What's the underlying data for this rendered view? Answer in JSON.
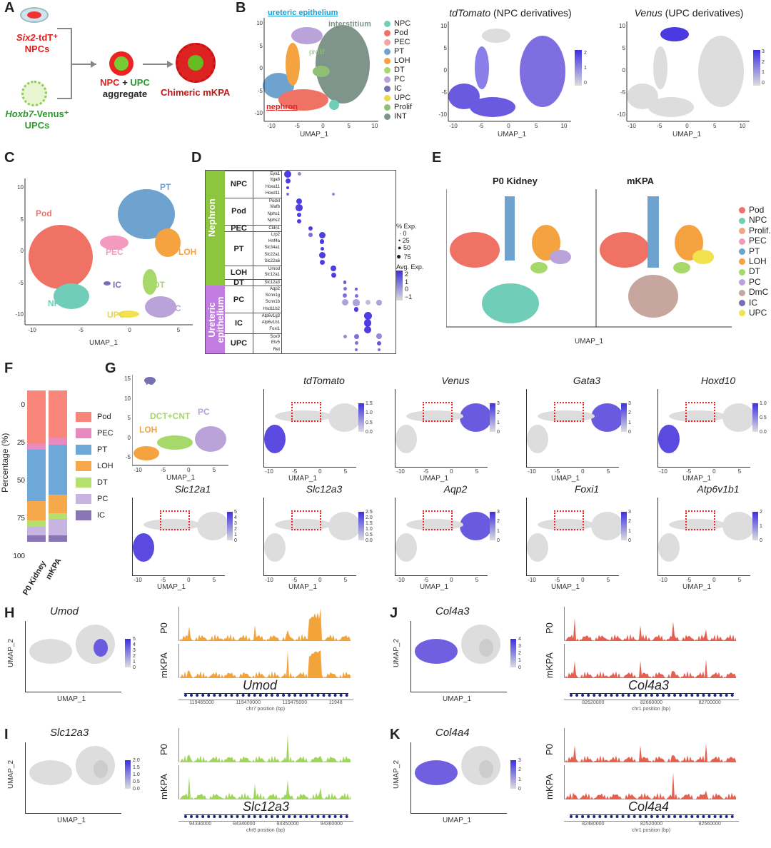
{
  "panels": {
    "A": "A",
    "B": "B",
    "C": "C",
    "D": "D",
    "E": "E",
    "F": "F",
    "G": "G",
    "H": "H",
    "I": "I",
    "J": "J",
    "K": "K"
  },
  "A": {
    "npc_gene": "Six2",
    "npc_suffix": "-tdT⁺",
    "npc_label": "NPCs",
    "upc_gene": "Hoxb7",
    "upc_suffix": "-Venus⁺",
    "upc_label": "UPCs",
    "agg_npc": "NPC",
    "agg_plus": " + ",
    "agg_upc": "UPC",
    "agg_word": "aggregate",
    "chimeric": "Chimeric mKPA"
  },
  "axes": {
    "x": "UMAP_1",
    "y": "UMAP_2"
  },
  "B": {
    "ureteric": "ureteric epithelium",
    "interstitium": "interstitium",
    "prolif": "prolif.",
    "nephron": "nephron",
    "legend": [
      {
        "l": "NPC",
        "c": "#6fcdb8"
      },
      {
        "l": "Pod",
        "c": "#f07265"
      },
      {
        "l": "PEC",
        "c": "#f2a3a3"
      },
      {
        "l": "PT",
        "c": "#6ea3d0"
      },
      {
        "l": "LOH",
        "c": "#f4a340"
      },
      {
        "l": "DT",
        "c": "#a6d96a"
      },
      {
        "l": "PC",
        "c": "#b9a3d8"
      },
      {
        "l": "IC",
        "c": "#7570b3"
      },
      {
        "l": "UPC",
        "c": "#e7d84e"
      },
      {
        "l": "Prolif",
        "c": "#8fbf73"
      },
      {
        "l": "INT",
        "c": "#7f958b"
      }
    ],
    "td_title_gene": "tdTomato",
    "td_title_rest": " (NPC derivatives)",
    "td_scale": [
      "2",
      "1",
      "0"
    ],
    "venus_title_gene": "Venus",
    "venus_title_rest": " (UPC derivatives)",
    "venus_scale": [
      "3",
      "2",
      "1",
      "0"
    ],
    "xticks": [
      "-10",
      "-5",
      "0",
      "5",
      "10"
    ],
    "yticks": [
      "10",
      "5",
      "0",
      "-5",
      "-10"
    ]
  },
  "C": {
    "labels": [
      "PT",
      "Pod",
      "PEC",
      "LOH",
      "IC",
      "DT",
      "NPC",
      "UPC",
      "PC"
    ],
    "xticks": [
      "-10",
      "-5",
      "0",
      "5"
    ],
    "yticks": [
      "10",
      "5",
      "0",
      "-5",
      "-10"
    ]
  },
  "D": {
    "groups": [
      {
        "l": "Nephron",
        "c": "#8cc63f"
      },
      {
        "l": "Ureteric epithelium",
        "c": "#c27be0"
      }
    ],
    "clusters": [
      {
        "l": "NPC",
        "genes": [
          "Eya1",
          "Itga8",
          "Hoxa11",
          "Hoxd11"
        ]
      },
      {
        "l": "Pod",
        "genes": [
          "Podxl",
          "Mafb",
          "Nphs1",
          "Nphs2"
        ]
      },
      {
        "l": "PEC",
        "genes": [
          "Cldn1"
        ]
      },
      {
        "l": "PT",
        "genes": [
          "Lrp2",
          "Hnf4a",
          "Slc34a1",
          "Slc22a1",
          "Slc22a6"
        ]
      },
      {
        "l": "LOH",
        "genes": [
          "Umod",
          "Slc12a1"
        ]
      },
      {
        "l": "DT",
        "genes": [
          "Slc12a3"
        ]
      },
      {
        "l": "PC",
        "genes": [
          "Aqp2",
          "Scnn1g",
          "Scnn1b",
          "Hsd11b2"
        ]
      },
      {
        "l": "IC",
        "genes": [
          "Atp6v1g3",
          "Atp6v1b1",
          "Foxi1"
        ]
      },
      {
        "l": "UPC",
        "genes": [
          "Sox9",
          "Etv5",
          "Ret"
        ]
      }
    ],
    "pct_title": "% Exp.",
    "pct_ticks": [
      "0",
      "25",
      "50",
      "75"
    ],
    "avg_title": "Avg. Exp.",
    "avg_ticks": [
      "2",
      "1",
      "0",
      "−1"
    ],
    "dots": [
      [
        0,
        0,
        80,
        2
      ],
      [
        0,
        1,
        30,
        0.5
      ],
      [
        1,
        0,
        50,
        2
      ],
      [
        2,
        0,
        20,
        2
      ],
      [
        3,
        0,
        25,
        1
      ],
      [
        3,
        4,
        20,
        0.5
      ],
      [
        4,
        1,
        60,
        2
      ],
      [
        5,
        1,
        75,
        2
      ],
      [
        6,
        1,
        40,
        2
      ],
      [
        7,
        1,
        45,
        2
      ],
      [
        8,
        2,
        40,
        2
      ],
      [
        9,
        2,
        35,
        1
      ],
      [
        9,
        3,
        70,
        2
      ],
      [
        10,
        3,
        45,
        2
      ],
      [
        11,
        3,
        30,
        2
      ],
      [
        12,
        3,
        70,
        2
      ],
      [
        13,
        3,
        50,
        2
      ],
      [
        14,
        4,
        60,
        2
      ],
      [
        15,
        4,
        50,
        2
      ],
      [
        16,
        5,
        25,
        1.5
      ],
      [
        17,
        5,
        30,
        1
      ],
      [
        17,
        6,
        25,
        1.5
      ],
      [
        18,
        5,
        40,
        1
      ],
      [
        18,
        6,
        30,
        1
      ],
      [
        19,
        5,
        70,
        0
      ],
      [
        19,
        6,
        75,
        0
      ],
      [
        19,
        7,
        50,
        -0.5
      ],
      [
        19,
        8,
        55,
        0
      ],
      [
        20,
        6,
        45,
        2
      ],
      [
        21,
        7,
        90,
        2
      ],
      [
        22,
        7,
        85,
        2
      ],
      [
        23,
        7,
        80,
        2
      ],
      [
        24,
        6,
        50,
        1
      ],
      [
        24,
        8,
        60,
        0.5
      ],
      [
        24,
        5,
        30,
        0.5
      ],
      [
        25,
        6,
        30,
        1
      ],
      [
        25,
        8,
        40,
        1.5
      ],
      [
        26,
        6,
        20,
        1
      ],
      [
        26,
        8,
        20,
        1
      ]
    ]
  },
  "E": {
    "titles": [
      "P0 Kidney",
      "mKPA"
    ],
    "legend": [
      {
        "l": "Pod",
        "c": "#f07265"
      },
      {
        "l": "NPC",
        "c": "#6fcdb8"
      },
      {
        "l": "Prolif.",
        "c": "#f4a582"
      },
      {
        "l": "PEC",
        "c": "#f49ac1"
      },
      {
        "l": "PT",
        "c": "#6ea3d0"
      },
      {
        "l": "LOH",
        "c": "#f4a340"
      },
      {
        "l": "DT",
        "c": "#a6d96a"
      },
      {
        "l": "PC",
        "c": "#b9a3d8"
      },
      {
        "l": "DmC",
        "c": "#c7a6a0"
      },
      {
        "l": "IC",
        "c": "#7570b3"
      },
      {
        "l": "UPC",
        "c": "#f2e24e"
      }
    ]
  },
  "F": {
    "ylabel": "Percentage (%)",
    "yticks": [
      "0",
      "25",
      "50",
      "75",
      "100"
    ],
    "categories": [
      "P0 Kidney",
      "mKPA"
    ],
    "legend": [
      {
        "l": "Pod",
        "c": "#f8867a"
      },
      {
        "l": "PEC",
        "c": "#e889c0"
      },
      {
        "l": "PT",
        "c": "#6ea8d8"
      },
      {
        "l": "LOH",
        "c": "#f6a94a"
      },
      {
        "l": "DT",
        "c": "#b5e06d"
      },
      {
        "l": "PC",
        "c": "#c7b4e0"
      },
      {
        "l": "IC",
        "c": "#8a75b5"
      }
    ],
    "values": [
      [
        35,
        4,
        34,
        13,
        4,
        6,
        4
      ],
      [
        31,
        5,
        33,
        12,
        4,
        11,
        4
      ]
    ]
  },
  "G": {
    "base_labels": [
      "IC",
      "DCT+CNT",
      "PC",
      "LOH"
    ],
    "genes": [
      {
        "g": "tdTomato",
        "s": [
          "1.5",
          "1.0",
          "0.5",
          "0.0"
        ]
      },
      {
        "g": "Venus",
        "s": [
          "3",
          "2",
          "1",
          "0"
        ]
      },
      {
        "g": "Gata3",
        "s": [
          "3",
          "2",
          "1",
          "0"
        ]
      },
      {
        "g": "Hoxd10",
        "s": [
          "1.0",
          "0.5",
          "0.0"
        ]
      },
      {
        "g": "Slc12a1",
        "s": [
          "5",
          "4",
          "3",
          "2",
          "1",
          "0"
        ]
      },
      {
        "g": "Slc12a3",
        "s": [
          "2.5",
          "2.0",
          "1.5",
          "1.0",
          "0.5",
          "0.0"
        ]
      },
      {
        "g": "Aqp2",
        "s": [
          "3",
          "2",
          "1",
          "0"
        ]
      },
      {
        "g": "Foxi1",
        "s": [
          "3",
          "2",
          "1",
          "0"
        ]
      },
      {
        "g": "Atp6v1b1",
        "s": [
          "2",
          "1",
          "0"
        ]
      }
    ],
    "xticks": [
      "-10",
      "-5",
      "0",
      "5"
    ],
    "yticks": [
      "15",
      "10",
      "5",
      "0",
      "-5"
    ]
  },
  "tracks": [
    {
      "panel": "H",
      "gene": "Umod",
      "scale": [
        "5",
        "4",
        "3",
        "2",
        "1",
        "0"
      ],
      "color": "#f2a33a",
      "rows": [
        "P0",
        "mKPA"
      ],
      "axis": [
        "119465000",
        "119470000",
        "119475000",
        "11948"
      ],
      "chrom": "chr7 position (bp)"
    },
    {
      "panel": "I",
      "gene": "Slc12a3",
      "scale": [
        "2.0",
        "1.5",
        "1.0",
        "0.5",
        "0.0"
      ],
      "color": "#9fd65a",
      "rows": [
        "P0",
        "mKPA"
      ],
      "axis": [
        "94330000",
        "94340000",
        "94350000",
        "94360000"
      ],
      "chrom": "chr8 position (bp)"
    },
    {
      "panel": "J",
      "gene": "Col4a3",
      "scale": [
        "4",
        "3",
        "2",
        "1",
        "0"
      ],
      "color": "#e5604f",
      "rows": [
        "P0",
        "mKPA"
      ],
      "axis": [
        "82620000",
        "82660000",
        "82700000"
      ],
      "chrom": "chr1 position (bp)"
    },
    {
      "panel": "K",
      "gene": "Col4a4",
      "scale": [
        "3",
        "2",
        "1",
        "0"
      ],
      "color": "#e5604f",
      "rows": [
        "P0",
        "mKPA"
      ],
      "axis": [
        "82480000",
        "82520000",
        "82560000"
      ],
      "chrom": "chr1 position (bp)"
    }
  ]
}
